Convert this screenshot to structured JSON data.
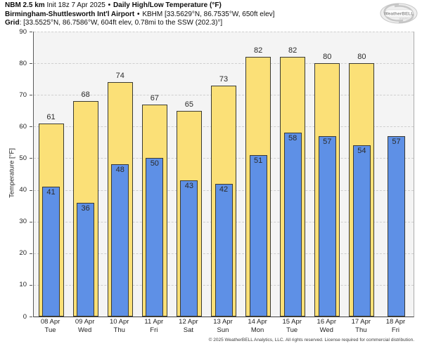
{
  "header": {
    "line1": {
      "model": "NBM 2.5 km",
      "init": "Init 18z 7 Apr 2025",
      "sep": "•",
      "title": "Daily High/Low Temperature (°F)"
    },
    "line2": {
      "station": "Birmingham-Shuttlesworth Int'l Airport",
      "sep": "•",
      "details": "KBHM [33.5629°N, 86.7535°W, 650ft elev]"
    },
    "line3": {
      "label": "Grid",
      "details": ": [33.5525°N, 86.7586°W, 604ft elev, 0.78mi to the SSW (202.3)°]"
    }
  },
  "logo": {
    "text": "WeatherBELL",
    "subtext": "analytics LLC"
  },
  "chart_data": {
    "type": "bar",
    "title": "Daily High/Low Temperature (°F)",
    "ylabel": "Temperature [°F]",
    "ylim": [
      0,
      90
    ],
    "ytick_step": 10,
    "grid": "horizontal-dashed",
    "plot_bg": "#f4f4f4",
    "categories": [
      "08 Apr",
      "09 Apr",
      "10 Apr",
      "11 Apr",
      "12 Apr",
      "13 Apr",
      "14 Apr",
      "15 Apr",
      "16 Apr",
      "17 Apr",
      "18 Apr"
    ],
    "categories_line2": [
      "Tue",
      "Wed",
      "Thu",
      "Fri",
      "Sat",
      "Sun",
      "Mon",
      "Tue",
      "Wed",
      "Thu",
      "Fri"
    ],
    "series": [
      {
        "name": "Daily High",
        "color": "#fbe077",
        "values": [
          61,
          68,
          74,
          67,
          65,
          73,
          82,
          82,
          80,
          80,
          null
        ]
      },
      {
        "name": "Daily Low",
        "color": "#5e90e6",
        "values": [
          41,
          36,
          48,
          50,
          43,
          42,
          51,
          58,
          57,
          54,
          57
        ]
      }
    ]
  },
  "footer": {
    "copyright": "© 2025 WeatherBELL Analytics, LLC. All rights reserved. License required for commercial distribution."
  }
}
